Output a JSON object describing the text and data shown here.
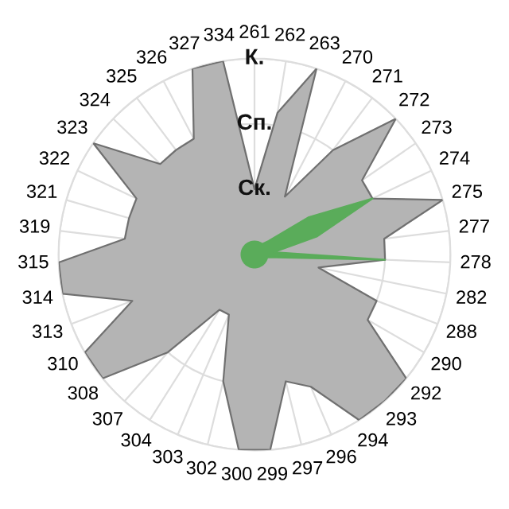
{
  "chart_data": {
    "type": "radar",
    "categories": [
      "261",
      "262",
      "263",
      "270",
      "271",
      "272",
      "273",
      "274",
      "275",
      "277",
      "278",
      "282",
      "288",
      "290",
      "292",
      "293",
      "294",
      "296",
      "297",
      "299",
      "300",
      "302",
      "303",
      "304",
      "307",
      "308",
      "310",
      "313",
      "314",
      "315",
      "319",
      "321",
      "322",
      "323",
      "324",
      "325",
      "326",
      "327",
      "334"
    ],
    "series": [
      {
        "color": "#b4b4b4",
        "values": [
          1,
          2.2,
          3,
          1,
          2,
          3,
          2,
          2,
          3,
          2,
          2,
          1,
          2,
          2,
          3,
          3,
          3,
          2.2,
          2,
          3,
          3,
          2,
          1,
          1,
          2,
          3,
          3,
          2,
          3,
          3,
          2,
          2,
          2,
          3,
          2,
          2,
          2,
          3,
          3
        ]
      },
      {
        "color": "#5aac5a",
        "values": [
          0.2,
          0.2,
          0.2,
          0.2,
          0.2,
          0.3,
          1,
          2,
          1,
          0.3,
          2,
          0.2,
          0.2,
          0.2,
          0.2,
          0.2,
          0.2,
          0.2,
          0.2,
          0.2,
          0.2,
          0.2,
          0.2,
          0.2,
          0.2,
          0.2,
          0.2,
          0.2,
          0.2,
          0.2,
          0.2,
          0.2,
          0.2,
          0.2,
          0.2,
          0.2,
          0.2,
          0.2,
          0.2
        ]
      }
    ],
    "ylim": [
      0,
      3
    ],
    "yticks": [
      {
        "value": 1,
        "label": "Ск."
      },
      {
        "value": 2,
        "label": "Сп."
      },
      {
        "value": 3,
        "label": "К."
      }
    ],
    "grid": true
  }
}
